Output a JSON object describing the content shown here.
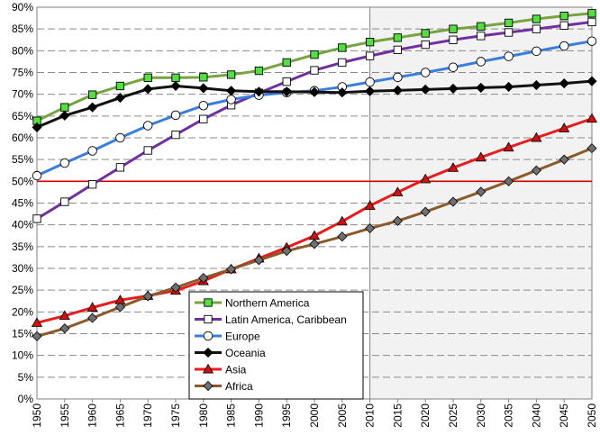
{
  "chart_data": {
    "type": "line",
    "title": "",
    "xlabel": "",
    "ylabel": "",
    "x": [
      1950,
      1955,
      1960,
      1965,
      1970,
      1975,
      1980,
      1985,
      1990,
      1995,
      2000,
      2005,
      2010,
      2015,
      2020,
      2025,
      2030,
      2035,
      2040,
      2045,
      2050
    ],
    "ylim": [
      0,
      90
    ],
    "y_tick_step": 5,
    "y_tick_format": "percent",
    "grid": true,
    "projection_shaded_from": 2010,
    "reference_line_y": 50,
    "reference_line_color": "#d00000",
    "legend_placement": "bottom-center",
    "series": [
      {
        "name": "Northern America",
        "color": "#77a341",
        "marker": "square",
        "marker_fill": "#55dd44",
        "values": [
          63.9,
          67.0,
          69.9,
          71.9,
          73.8,
          73.8,
          73.9,
          74.5,
          75.4,
          77.3,
          79.1,
          80.7,
          82.0,
          83.0,
          84.0,
          85.0,
          85.6,
          86.4,
          87.3,
          88.0,
          88.6
        ]
      },
      {
        "name": "Latin America, Caribbean",
        "color": "#7030a0",
        "marker": "square",
        "marker_fill": "#ffffff",
        "values": [
          41.4,
          45.3,
          49.3,
          53.2,
          57.1,
          60.7,
          64.3,
          67.5,
          70.3,
          72.9,
          75.5,
          77.3,
          78.8,
          80.2,
          81.4,
          82.5,
          83.4,
          84.2,
          85.0,
          85.8,
          86.6
        ]
      },
      {
        "name": "Europe",
        "color": "#3b7ddd",
        "marker": "circle",
        "marker_fill": "#ffffff",
        "values": [
          51.3,
          54.2,
          57.0,
          60.0,
          62.8,
          65.2,
          67.4,
          68.8,
          69.8,
          70.4,
          70.8,
          71.7,
          72.8,
          73.9,
          75.0,
          76.2,
          77.5,
          78.7,
          79.9,
          81.1,
          82.2
        ]
      },
      {
        "name": "Oceania",
        "color": "#111111",
        "marker": "diamond",
        "marker_fill": "#000000",
        "values": [
          62.4,
          65.1,
          67.0,
          69.2,
          71.2,
          71.9,
          71.4,
          70.8,
          70.6,
          70.6,
          70.5,
          70.4,
          70.7,
          70.9,
          71.1,
          71.3,
          71.5,
          71.7,
          72.1,
          72.5,
          73.0
        ]
      },
      {
        "name": "Asia",
        "color": "#e81c1c",
        "marker": "triangle",
        "marker_fill": "#cc1111",
        "values": [
          17.5,
          19.1,
          21.0,
          22.7,
          23.7,
          24.9,
          27.1,
          29.8,
          32.3,
          34.8,
          37.5,
          40.8,
          44.4,
          47.5,
          50.5,
          53.1,
          55.5,
          57.8,
          60.0,
          62.2,
          64.4
        ]
      },
      {
        "name": "Africa",
        "color": "#8b5a2b",
        "marker": "diamond",
        "marker_fill": "#707070",
        "values": [
          14.4,
          16.2,
          18.6,
          21.1,
          23.6,
          25.6,
          27.8,
          29.8,
          31.9,
          34.0,
          35.6,
          37.3,
          39.2,
          40.9,
          43.0,
          45.3,
          47.6,
          50.0,
          52.5,
          55.0,
          57.6
        ]
      }
    ]
  }
}
